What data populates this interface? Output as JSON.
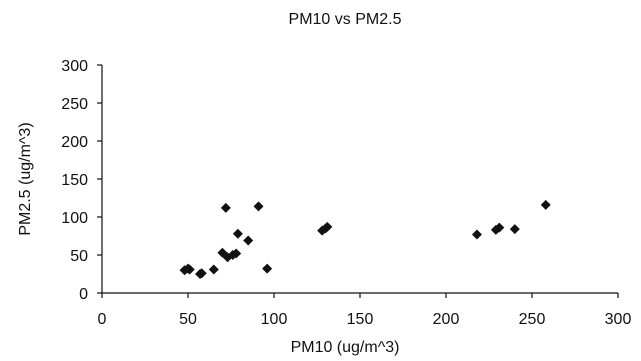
{
  "chart_data": {
    "type": "scatter",
    "title": "PM10 vs PM2.5",
    "xlabel": "PM10 (ug/m^3)",
    "ylabel": "PM2.5 (ug/m^3)",
    "xlim": [
      0,
      300
    ],
    "ylim": [
      0,
      300
    ],
    "x_ticks": [
      "0",
      "50",
      "100",
      "150",
      "200",
      "250",
      "300"
    ],
    "y_ticks": [
      "0",
      "50",
      "100",
      "150",
      "200",
      "250",
      "300"
    ],
    "grid": false,
    "legend": "none",
    "marker": "diamond",
    "marker_color": "#111111",
    "points": [
      {
        "x": 48,
        "y": 30
      },
      {
        "x": 50,
        "y": 32
      },
      {
        "x": 51,
        "y": 31
      },
      {
        "x": 57,
        "y": 25
      },
      {
        "x": 58,
        "y": 26
      },
      {
        "x": 65,
        "y": 31
      },
      {
        "x": 70,
        "y": 53
      },
      {
        "x": 72,
        "y": 112
      },
      {
        "x": 73,
        "y": 47
      },
      {
        "x": 76,
        "y": 50
      },
      {
        "x": 78,
        "y": 52
      },
      {
        "x": 79,
        "y": 78
      },
      {
        "x": 85,
        "y": 69
      },
      {
        "x": 91,
        "y": 114
      },
      {
        "x": 96,
        "y": 32
      },
      {
        "x": 128,
        "y": 82
      },
      {
        "x": 130,
        "y": 85
      },
      {
        "x": 131,
        "y": 87
      },
      {
        "x": 218,
        "y": 77
      },
      {
        "x": 229,
        "y": 83
      },
      {
        "x": 231,
        "y": 86
      },
      {
        "x": 240,
        "y": 84
      },
      {
        "x": 258,
        "y": 116
      }
    ]
  }
}
